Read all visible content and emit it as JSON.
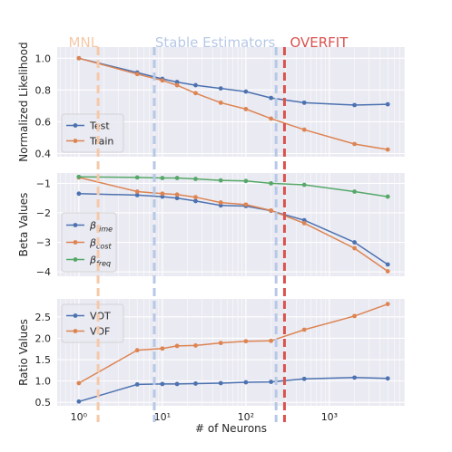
{
  "chart_data": [
    {
      "type": "line",
      "ylabel": "Normalized Likelihood",
      "ylim": [
        0.38,
        1.07
      ],
      "yticks": [
        0.4,
        0.6,
        0.8,
        1.0
      ],
      "ytick_labels": [
        "0.4",
        "0.6",
        "0.8",
        "1.0"
      ],
      "xscale": "log",
      "xlim": [
        0.55,
        8000
      ],
      "legend_position": "lower-left",
      "series": [
        {
          "name": "Test",
          "color": "#4c72b0",
          "x": [
            1,
            5,
            10,
            15,
            25,
            50,
            100,
            200,
            500,
            2000,
            5000
          ],
          "y": [
            1.0,
            0.91,
            0.87,
            0.85,
            0.83,
            0.81,
            0.79,
            0.75,
            0.72,
            0.705,
            0.71
          ]
        },
        {
          "name": "Train",
          "color": "#dd8452",
          "x": [
            1,
            5,
            10,
            15,
            25,
            50,
            100,
            200,
            500,
            2000,
            5000
          ],
          "y": [
            1.0,
            0.9,
            0.86,
            0.83,
            0.78,
            0.72,
            0.68,
            0.62,
            0.55,
            0.46,
            0.425
          ]
        }
      ]
    },
    {
      "type": "line",
      "ylabel": "Beta Values",
      "ylim": [
        -4.15,
        -0.65
      ],
      "yticks": [
        -4,
        -3,
        -2,
        -1
      ],
      "ytick_labels": [
        "−4",
        "−3",
        "−2",
        "−1"
      ],
      "xscale": "log",
      "xlim": [
        0.55,
        8000
      ],
      "legend_position": "lower-left",
      "series": [
        {
          "name": "β",
          "name_sub": "time",
          "color": "#4c72b0",
          "x": [
            1,
            5,
            10,
            15,
            25,
            50,
            100,
            200,
            500,
            2000,
            5000
          ],
          "y": [
            -1.35,
            -1.4,
            -1.45,
            -1.5,
            -1.6,
            -1.75,
            -1.77,
            -1.93,
            -2.25,
            -3.0,
            -3.75
          ]
        },
        {
          "name": "β",
          "name_sub": "cost",
          "color": "#dd8452",
          "x": [
            1,
            5,
            10,
            15,
            25,
            50,
            100,
            200,
            500,
            2000,
            5000
          ],
          "y": [
            -0.8,
            -1.28,
            -1.35,
            -1.38,
            -1.47,
            -1.65,
            -1.72,
            -1.92,
            -2.35,
            -3.2,
            -3.98
          ]
        },
        {
          "name": "β",
          "name_sub": "freq",
          "color": "#55a868",
          "x": [
            1,
            5,
            10,
            15,
            25,
            50,
            100,
            200,
            500,
            2000,
            5000
          ],
          "y": [
            -0.78,
            -0.8,
            -0.82,
            -0.82,
            -0.85,
            -0.9,
            -0.92,
            -1.0,
            -1.05,
            -1.28,
            -1.45
          ]
        }
      ]
    },
    {
      "type": "line",
      "ylabel": "Ratio Values",
      "ylim": [
        0.42,
        2.92
      ],
      "yticks": [
        0.5,
        1.0,
        1.5,
        2.0,
        2.5
      ],
      "ytick_labels": [
        "0.5",
        "1.0",
        "1.5",
        "2.0",
        "2.5"
      ],
      "xscale": "log",
      "xlim": [
        0.55,
        8000
      ],
      "xlabel": "# of Neurons",
      "xtick_labels": [
        "10⁰",
        "10¹",
        "10²",
        "10³"
      ],
      "legend_position": "top-left",
      "series": [
        {
          "name": "VOT",
          "color": "#4c72b0",
          "x": [
            1,
            5,
            10,
            15,
            25,
            50,
            100,
            200,
            500,
            2000,
            5000
          ],
          "y": [
            0.52,
            0.92,
            0.93,
            0.93,
            0.94,
            0.95,
            0.97,
            0.98,
            1.05,
            1.08,
            1.06
          ]
        },
        {
          "name": "VOF",
          "color": "#dd8452",
          "x": [
            1,
            5,
            10,
            15,
            25,
            50,
            100,
            200,
            500,
            2000,
            5000
          ],
          "y": [
            0.95,
            1.72,
            1.76,
            1.82,
            1.83,
            1.89,
            1.93,
            1.94,
            2.2,
            2.52,
            2.8
          ]
        }
      ]
    }
  ],
  "regions": {
    "mnl": {
      "label": "MNL",
      "x": 1.7,
      "color": "#f5c9a8"
    },
    "stable": {
      "label": "Stable Estimators",
      "x_start": 8,
      "x_end": 230,
      "color": "#b7c8e6"
    },
    "overfit": {
      "label": "OVERFIT",
      "x": 290,
      "color": "#d9534f"
    }
  }
}
